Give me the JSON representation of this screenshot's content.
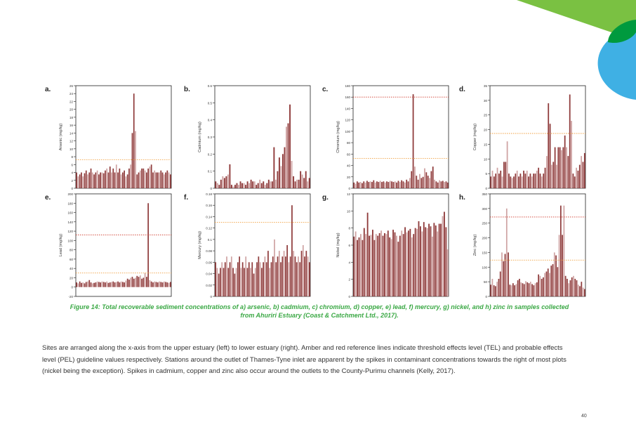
{
  "decor": {
    "accent_green": "#7ac142",
    "dark_green": "#009a3e",
    "accent_blue": "#3fb0e4"
  },
  "colors": {
    "bar_dark": "#8f3b3b",
    "bar_light": "#cfa3a3",
    "tel_line": "#f0a040",
    "pel_line": "#d03a2c"
  },
  "chart_data": [
    {
      "panel": "a.",
      "type": "bar",
      "ylabel": "Arsenic (mg/kg)",
      "ylim": [
        0,
        26
      ],
      "yticks": [
        0,
        2,
        4,
        6,
        8,
        10,
        12,
        14,
        16,
        18,
        20,
        22,
        24,
        26
      ],
      "tel": 7.24,
      "pel": null,
      "values": [
        4,
        3,
        3.5,
        4,
        3,
        3.8,
        4.5,
        3.5,
        4,
        5,
        4,
        3.5,
        4,
        4.5,
        3.5,
        4,
        4,
        3.8,
        4.5,
        5,
        4,
        5.5,
        4,
        5,
        4,
        6,
        4,
        5,
        3.5,
        4,
        4.5,
        3,
        3.5,
        5,
        6,
        14,
        24,
        14.5,
        3.5,
        4,
        4.5,
        5,
        5,
        4.5,
        4,
        5,
        5.5,
        6,
        4,
        4.5,
        4,
        4,
        4,
        4.5,
        4,
        3.5,
        4,
        4.5,
        4,
        3.5
      ]
    },
    {
      "panel": "b.",
      "type": "bar",
      "ylabel": "Cadmium (mg/kg)",
      "ylim": [
        0,
        0.6
      ],
      "yticks": [
        0,
        0.1,
        0.2,
        0.3,
        0.4,
        0.5,
        0.6
      ],
      "tel": null,
      "pel": null,
      "values": [
        0.04,
        0.03,
        0.02,
        0.05,
        0.07,
        0.06,
        0.07,
        0.08,
        0.14,
        0.02,
        0.01,
        0.02,
        0.03,
        0.02,
        0.04,
        0.03,
        0.03,
        0.02,
        0.04,
        0.03,
        0.05,
        0.04,
        0.04,
        0.02,
        0.03,
        0.05,
        0.03,
        0.04,
        0.02,
        0.03,
        0.05,
        0.04,
        0.04,
        0.24,
        0.05,
        0.1,
        0.18,
        0.13,
        0.2,
        0.24,
        0.36,
        0.38,
        0.49,
        0.16,
        0.07,
        0.04,
        0.05,
        0.05,
        0.1,
        0.08,
        0.06,
        0.1,
        0.04,
        0.06
      ]
    },
    {
      "panel": "c.",
      "type": "bar",
      "ylabel": "Chromium (mg/kg)",
      "ylim": [
        0,
        180
      ],
      "yticks": [
        0,
        20,
        40,
        60,
        80,
        100,
        120,
        140,
        160,
        180
      ],
      "tel": 52.3,
      "pel": 160,
      "values": [
        10,
        8,
        12,
        10,
        11,
        9,
        12,
        10,
        13,
        11,
        12,
        11,
        14,
        10,
        12,
        11,
        13,
        11,
        12,
        10,
        12,
        11,
        13,
        12,
        11,
        12,
        10,
        13,
        11,
        14,
        12,
        10,
        15,
        12,
        18,
        30,
        165,
        38,
        22,
        15,
        25,
        18,
        20,
        35,
        28,
        22,
        18,
        30,
        38,
        15,
        12,
        10,
        14,
        12,
        13,
        11,
        12,
        10
      ]
    },
    {
      "panel": "d.",
      "type": "bar",
      "ylabel": "Copper (mg/kg)",
      "ylim": [
        0,
        35
      ],
      "yticks": [
        0,
        5,
        10,
        15,
        20,
        25,
        30,
        35
      ],
      "tel": 18.7,
      "pel": null,
      "values": [
        4,
        6,
        4,
        5,
        7,
        5,
        6,
        4,
        9,
        9,
        16,
        5,
        4,
        3.5,
        4,
        5,
        6,
        4,
        5,
        4,
        6,
        5,
        6,
        4,
        5,
        4,
        5,
        5,
        6,
        7,
        5,
        4,
        5,
        7,
        11,
        29,
        22,
        8,
        9,
        14,
        8,
        14,
        14,
        13,
        14,
        18,
        14,
        11,
        32,
        23,
        5,
        4,
        7,
        6,
        8,
        11,
        9,
        12
      ]
    },
    {
      "panel": "e.",
      "type": "bar",
      "ylabel": "Lead (mg/kg)",
      "ylim": [
        -20,
        200
      ],
      "yticks": [
        -20,
        0,
        20,
        40,
        60,
        80,
        100,
        120,
        140,
        160,
        180,
        200
      ],
      "tel": 30.2,
      "pel": 112,
      "values": [
        10,
        8,
        12,
        9,
        10,
        8,
        11,
        12,
        15,
        10,
        8,
        9,
        10,
        12,
        11,
        10,
        12,
        11,
        10,
        12,
        9,
        10,
        11,
        12,
        10,
        11,
        12,
        10,
        12,
        11,
        10,
        14,
        18,
        16,
        20,
        22,
        18,
        20,
        24,
        22,
        25,
        18,
        20,
        30,
        22,
        180,
        15,
        12,
        10,
        12,
        11,
        10,
        12,
        11,
        10,
        12,
        11,
        10,
        9,
        11
      ]
    },
    {
      "panel": "f.",
      "type": "bar",
      "ylabel": "Mercury (mg/kg)",
      "ylim": [
        0,
        0.18
      ],
      "yticks": [
        0,
        0.02,
        0.04,
        0.06,
        0.08,
        0.1,
        0.12,
        0.14,
        0.16,
        0.18
      ],
      "tel": 0.13,
      "pel": null,
      "values": [
        0.06,
        0.05,
        0.04,
        0.05,
        0.06,
        0.05,
        0.06,
        0.07,
        0.05,
        0.06,
        0.07,
        0.05,
        0.04,
        0.05,
        0.06,
        0.07,
        0.05,
        0.06,
        0.05,
        0.07,
        0.05,
        0.06,
        0.05,
        0.06,
        0.04,
        0.05,
        0.06,
        0.07,
        0.06,
        0.05,
        0.06,
        0.07,
        0.06,
        0.08,
        0.05,
        0.06,
        0.07,
        0.1,
        0.06,
        0.07,
        0.08,
        0.06,
        0.07,
        0.08,
        0.07,
        0.09,
        0.06,
        0.07,
        0.16,
        0.08,
        0.07,
        0.06,
        0.07,
        0.06,
        0.08,
        0.09,
        0.07,
        0.08,
        0.07,
        0.06
      ]
    },
    {
      "panel": "g.",
      "type": "bar",
      "ylabel": "Nickel (mg/kg)",
      "ylim": [
        0,
        12
      ],
      "yticks": [
        0,
        2,
        4,
        6,
        8,
        10,
        12
      ],
      "tel": null,
      "pel": null,
      "values": [
        7,
        7.6,
        6.6,
        6.9,
        7.3,
        6.6,
        8,
        7.3,
        9.8,
        7.1,
        7.2,
        7.8,
        6.6,
        7.3,
        7.1,
        7.4,
        7.7,
        7.1,
        7.4,
        7.3,
        7.7,
        6.9,
        6.7,
        7.8,
        7.5,
        7.1,
        6.4,
        7.1,
        7.7,
        7.3,
        8.1,
        7.5,
        7.7,
        7.9,
        6.9,
        7.3,
        8,
        7.9,
        8.8,
        8.2,
        7.6,
        8.7,
        8.1,
        8,
        8.5,
        8.2,
        7,
        8.6,
        8.3,
        7.6,
        8.5,
        8.5,
        9.4,
        9.9,
        8.1,
        5.5
      ]
    },
    {
      "panel": "h.",
      "type": "bar",
      "ylabel": "Zinc (mg/kg)",
      "ylim": [
        0,
        350
      ],
      "yticks": [
        0,
        50,
        100,
        150,
        200,
        250,
        300,
        350
      ],
      "tel": 124,
      "pel": 271,
      "values": [
        40,
        60,
        38,
        35,
        50,
        60,
        85,
        150,
        120,
        145,
        300,
        150,
        40,
        38,
        45,
        38,
        42,
        55,
        60,
        48,
        45,
        42,
        52,
        48,
        45,
        50,
        42,
        38,
        45,
        48,
        75,
        70,
        60,
        65,
        80,
        85,
        95,
        80,
        105,
        110,
        150,
        140,
        100,
        210,
        310,
        210,
        310,
        70,
        60,
        45,
        55,
        65,
        70,
        60,
        55,
        40,
        35,
        50,
        30,
        25
      ]
    }
  ],
  "caption": {
    "line1": "Figure 14: Total recoverable sediment concentrations of a) arsenic, b) cadmium, c) chromium, d) copper, e) lead, f) mercury, g) nickel, and h) zinc in samples collected",
    "line2": "from Ahuriri Estuary (Coast & Catchment Ltd., 2017)."
  },
  "body_text": "Sites are arranged along the x-axis from the upper estuary (left) to lower estuary (right). Amber and red reference lines indicate threshold effects level (TEL) and probable effects level (PEL) guideline values respectively. Stations around the outlet of Thames-Tyne inlet are apparent by the spikes in contaminant concentrations towards the right of most plots (nickel being the exception). Spikes in cadmium, copper and zinc also occur around the outlets to the County-Purimu channels (Kelly, 2017).",
  "page_number": "40"
}
